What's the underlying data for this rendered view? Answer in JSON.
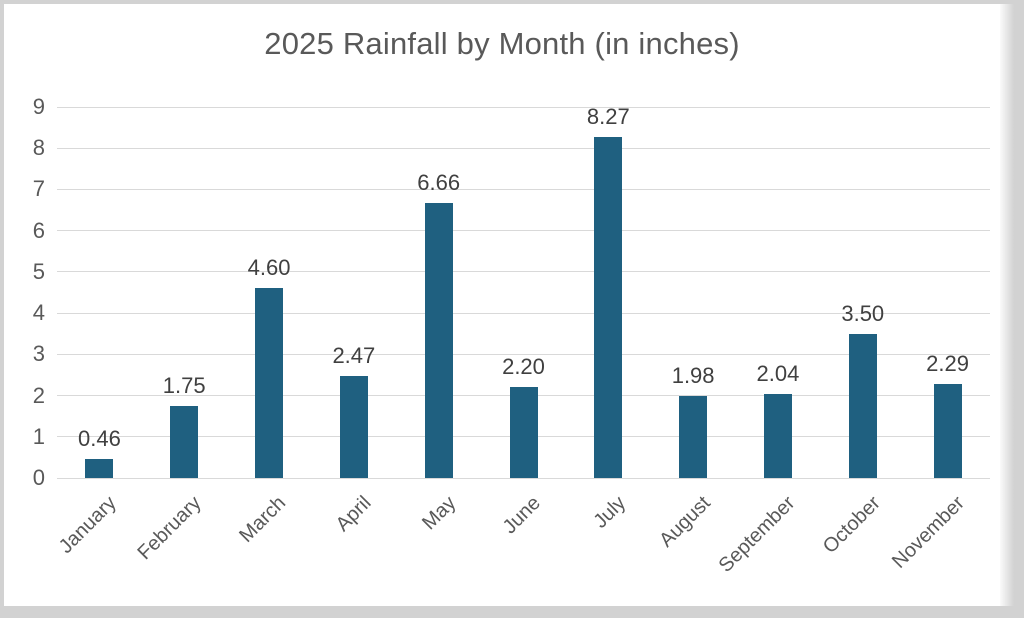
{
  "frame": {
    "background_color": "#D2D2D2",
    "panel_background_color": "#FFFFFF"
  },
  "chart_data": {
    "type": "bar",
    "title": "2025 Rainfall by Month (in inches)",
    "xlabel": "",
    "ylabel": "",
    "categories": [
      "January",
      "February",
      "March",
      "April",
      "May",
      "June",
      "July",
      "August",
      "September",
      "October",
      "November"
    ],
    "values": [
      0.46,
      1.75,
      4.6,
      2.47,
      6.66,
      2.2,
      8.27,
      1.98,
      2.04,
      3.5,
      2.29
    ],
    "value_labels": [
      "0.46",
      "1.75",
      "4.60",
      "2.47",
      "6.66",
      "2.20",
      "8.27",
      "1.98",
      "2.04",
      "3.50",
      "2.29"
    ],
    "ylim": [
      0,
      9
    ],
    "yticks": [
      "0",
      "1",
      "2",
      "3",
      "4",
      "5",
      "6",
      "7",
      "8",
      "9"
    ],
    "grid": true,
    "legend": "none",
    "bar_color": "#1F6080",
    "title_color": "#595959",
    "axis_tick_label_color": "#595959",
    "value_label_color": "#404040",
    "gridline_color": "#D9D9D9"
  }
}
